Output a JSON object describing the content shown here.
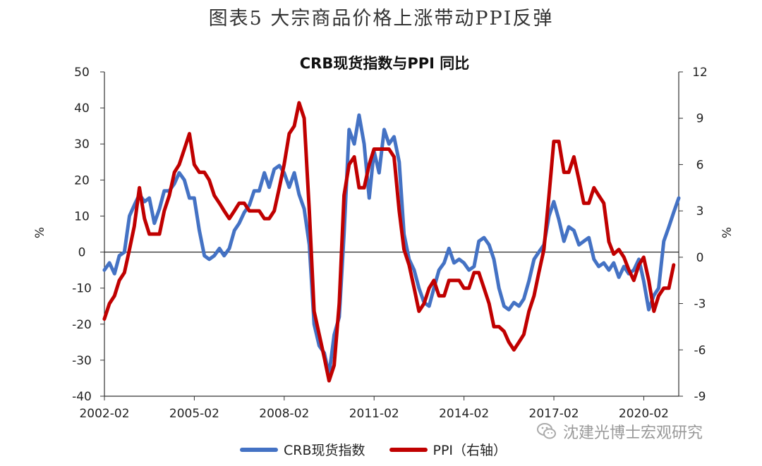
{
  "figure_title": "图表5  大宗商品价格上涨带动PPI反弹",
  "watermark": {
    "text": "沈建光博士宏观研究",
    "icon": "wechat-icon"
  },
  "chart_data": {
    "type": "line",
    "title": "CRB现货指数与PPI 同比",
    "ylabel": "%",
    "y2label": "%",
    "ylim": [
      -40,
      50
    ],
    "y2lim": [
      -9,
      12
    ],
    "yticks": [
      "50",
      "40",
      "30",
      "20",
      "10",
      "0",
      "-10",
      "-20",
      "-30",
      "-40"
    ],
    "y2ticks": [
      "12",
      "9",
      "6",
      "3",
      "0",
      "-3",
      "-6",
      "-9"
    ],
    "xlim": [
      2002.083,
      2021.25
    ],
    "xticks": [
      {
        "label": "2002-02",
        "x": 2002.083
      },
      {
        "label": "2005-02",
        "x": 2005.083
      },
      {
        "label": "2008-02",
        "x": 2008.083
      },
      {
        "label": "2011-02",
        "x": 2011.083
      },
      {
        "label": "2014-02",
        "x": 2014.083
      },
      {
        "label": "2017-02",
        "x": 2017.083
      },
      {
        "label": "2020-02",
        "x": 2020.083
      }
    ],
    "legend_position": "bottom",
    "grid": false,
    "series": [
      {
        "name": "CRB现货指数",
        "axis": "left",
        "color": "#4472C4",
        "points": [
          [
            2002.08,
            -5
          ],
          [
            2002.25,
            -3
          ],
          [
            2002.42,
            -6
          ],
          [
            2002.58,
            -1
          ],
          [
            2002.75,
            0
          ],
          [
            2002.92,
            10
          ],
          [
            2003.08,
            13
          ],
          [
            2003.25,
            16
          ],
          [
            2003.42,
            14
          ],
          [
            2003.58,
            15
          ],
          [
            2003.75,
            8
          ],
          [
            2003.92,
            12
          ],
          [
            2004.08,
            17
          ],
          [
            2004.25,
            17
          ],
          [
            2004.42,
            19
          ],
          [
            2004.58,
            22
          ],
          [
            2004.75,
            20
          ],
          [
            2004.92,
            15
          ],
          [
            2005.08,
            15
          ],
          [
            2005.25,
            6
          ],
          [
            2005.42,
            -1
          ],
          [
            2005.58,
            -2
          ],
          [
            2005.75,
            -1
          ],
          [
            2005.92,
            1
          ],
          [
            2006.08,
            -1
          ],
          [
            2006.25,
            1
          ],
          [
            2006.42,
            6
          ],
          [
            2006.58,
            8
          ],
          [
            2006.75,
            11
          ],
          [
            2006.92,
            13
          ],
          [
            2007.08,
            17
          ],
          [
            2007.25,
            17
          ],
          [
            2007.42,
            22
          ],
          [
            2007.58,
            18
          ],
          [
            2007.75,
            23
          ],
          [
            2007.92,
            24
          ],
          [
            2008.08,
            22
          ],
          [
            2008.25,
            18
          ],
          [
            2008.42,
            22
          ],
          [
            2008.58,
            16
          ],
          [
            2008.75,
            12
          ],
          [
            2008.92,
            2
          ],
          [
            2009.08,
            -20
          ],
          [
            2009.25,
            -26
          ],
          [
            2009.42,
            -28
          ],
          [
            2009.58,
            -34
          ],
          [
            2009.75,
            -23
          ],
          [
            2009.92,
            -18
          ],
          [
            2010.08,
            5
          ],
          [
            2010.25,
            34
          ],
          [
            2010.42,
            30
          ],
          [
            2010.58,
            38
          ],
          [
            2010.75,
            30
          ],
          [
            2010.92,
            15
          ],
          [
            2011.08,
            28
          ],
          [
            2011.25,
            22
          ],
          [
            2011.42,
            34
          ],
          [
            2011.58,
            30
          ],
          [
            2011.75,
            32
          ],
          [
            2011.92,
            25
          ],
          [
            2012.08,
            5
          ],
          [
            2012.25,
            -2
          ],
          [
            2012.42,
            -5
          ],
          [
            2012.58,
            -10
          ],
          [
            2012.75,
            -14
          ],
          [
            2012.92,
            -15
          ],
          [
            2013.08,
            -10
          ],
          [
            2013.25,
            -5
          ],
          [
            2013.42,
            -3
          ],
          [
            2013.58,
            1
          ],
          [
            2013.75,
            -3
          ],
          [
            2013.92,
            -2
          ],
          [
            2014.08,
            -3
          ],
          [
            2014.25,
            -5
          ],
          [
            2014.42,
            -4
          ],
          [
            2014.58,
            3
          ],
          [
            2014.75,
            4
          ],
          [
            2014.92,
            2
          ],
          [
            2015.08,
            -2
          ],
          [
            2015.25,
            -10
          ],
          [
            2015.42,
            -15
          ],
          [
            2015.58,
            -16
          ],
          [
            2015.75,
            -14
          ],
          [
            2015.92,
            -15
          ],
          [
            2016.08,
            -13
          ],
          [
            2016.25,
            -8
          ],
          [
            2016.42,
            -2
          ],
          [
            2016.58,
            0
          ],
          [
            2016.75,
            2
          ],
          [
            2016.92,
            10
          ],
          [
            2017.08,
            14
          ],
          [
            2017.25,
            9
          ],
          [
            2017.42,
            3
          ],
          [
            2017.58,
            7
          ],
          [
            2017.75,
            6
          ],
          [
            2017.92,
            2
          ],
          [
            2018.08,
            3
          ],
          [
            2018.25,
            4
          ],
          [
            2018.42,
            -2
          ],
          [
            2018.58,
            -4
          ],
          [
            2018.75,
            -3
          ],
          [
            2018.92,
            -5
          ],
          [
            2019.08,
            -3
          ],
          [
            2019.25,
            -7
          ],
          [
            2019.42,
            -4
          ],
          [
            2019.58,
            -6
          ],
          [
            2019.75,
            -5
          ],
          [
            2019.92,
            -2
          ],
          [
            2020.08,
            -8
          ],
          [
            2020.25,
            -16
          ],
          [
            2020.42,
            -12
          ],
          [
            2020.58,
            -10
          ],
          [
            2020.75,
            3
          ],
          [
            2020.92,
            7
          ],
          [
            2021.08,
            11
          ],
          [
            2021.25,
            15
          ]
        ]
      },
      {
        "name": "PPI（右轴）",
        "axis": "right",
        "color": "#C00000",
        "points": [
          [
            2002.08,
            -4
          ],
          [
            2002.25,
            -3
          ],
          [
            2002.42,
            -2.5
          ],
          [
            2002.58,
            -1.5
          ],
          [
            2002.75,
            -1
          ],
          [
            2002.92,
            0.5
          ],
          [
            2003.08,
            2
          ],
          [
            2003.25,
            4.5
          ],
          [
            2003.42,
            2.5
          ],
          [
            2003.58,
            1.5
          ],
          [
            2003.75,
            1.5
          ],
          [
            2003.92,
            1.5
          ],
          [
            2004.08,
            3
          ],
          [
            2004.25,
            4
          ],
          [
            2004.42,
            5.5
          ],
          [
            2004.58,
            6
          ],
          [
            2004.75,
            7
          ],
          [
            2004.92,
            8
          ],
          [
            2005.08,
            6
          ],
          [
            2005.25,
            5.5
          ],
          [
            2005.42,
            5.5
          ],
          [
            2005.58,
            5
          ],
          [
            2005.75,
            4
          ],
          [
            2005.92,
            3.5
          ],
          [
            2006.08,
            3
          ],
          [
            2006.25,
            2.5
          ],
          [
            2006.42,
            3
          ],
          [
            2006.58,
            3.5
          ],
          [
            2006.75,
            3.5
          ],
          [
            2006.92,
            3
          ],
          [
            2007.08,
            3
          ],
          [
            2007.25,
            3
          ],
          [
            2007.42,
            2.5
          ],
          [
            2007.58,
            2.5
          ],
          [
            2007.75,
            3
          ],
          [
            2007.92,
            4.5
          ],
          [
            2008.08,
            6
          ],
          [
            2008.25,
            8
          ],
          [
            2008.42,
            8.5
          ],
          [
            2008.58,
            10
          ],
          [
            2008.75,
            9
          ],
          [
            2008.92,
            3
          ],
          [
            2009.08,
            -3.5
          ],
          [
            2009.25,
            -5
          ],
          [
            2009.42,
            -6.5
          ],
          [
            2009.58,
            -8
          ],
          [
            2009.75,
            -7
          ],
          [
            2009.92,
            -3
          ],
          [
            2010.08,
            4
          ],
          [
            2010.25,
            6
          ],
          [
            2010.42,
            6.5
          ],
          [
            2010.58,
            4.5
          ],
          [
            2010.75,
            4.5
          ],
          [
            2010.92,
            6
          ],
          [
            2011.08,
            7
          ],
          [
            2011.25,
            7
          ],
          [
            2011.42,
            7
          ],
          [
            2011.58,
            7
          ],
          [
            2011.75,
            6.5
          ],
          [
            2011.92,
            3
          ],
          [
            2012.08,
            0.5
          ],
          [
            2012.25,
            -0.5
          ],
          [
            2012.42,
            -2
          ],
          [
            2012.58,
            -3.5
          ],
          [
            2012.75,
            -3
          ],
          [
            2012.92,
            -2
          ],
          [
            2013.08,
            -1.5
          ],
          [
            2013.25,
            -2.5
          ],
          [
            2013.42,
            -2.5
          ],
          [
            2013.58,
            -1.5
          ],
          [
            2013.75,
            -1.5
          ],
          [
            2013.92,
            -1.5
          ],
          [
            2014.08,
            -2
          ],
          [
            2014.25,
            -2
          ],
          [
            2014.42,
            -1
          ],
          [
            2014.58,
            -1
          ],
          [
            2014.75,
            -2
          ],
          [
            2014.92,
            -3
          ],
          [
            2015.08,
            -4.5
          ],
          [
            2015.25,
            -4.5
          ],
          [
            2015.42,
            -4.8
          ],
          [
            2015.58,
            -5.5
          ],
          [
            2015.75,
            -6
          ],
          [
            2015.92,
            -5.5
          ],
          [
            2016.08,
            -5
          ],
          [
            2016.25,
            -3.5
          ],
          [
            2016.42,
            -2.5
          ],
          [
            2016.58,
            -1
          ],
          [
            2016.75,
            0.5
          ],
          [
            2016.92,
            4
          ],
          [
            2017.08,
            7.5
          ],
          [
            2017.25,
            7.5
          ],
          [
            2017.42,
            5.5
          ],
          [
            2017.58,
            5.5
          ],
          [
            2017.75,
            6.5
          ],
          [
            2017.92,
            5
          ],
          [
            2018.08,
            3.5
          ],
          [
            2018.25,
            3.5
          ],
          [
            2018.42,
            4.5
          ],
          [
            2018.58,
            4
          ],
          [
            2018.75,
            3.5
          ],
          [
            2018.92,
            1
          ],
          [
            2019.08,
            0.2
          ],
          [
            2019.25,
            0.5
          ],
          [
            2019.42,
            0
          ],
          [
            2019.58,
            -0.8
          ],
          [
            2019.75,
            -1.5
          ],
          [
            2019.92,
            -0.5
          ],
          [
            2020.08,
            0
          ],
          [
            2020.25,
            -1.5
          ],
          [
            2020.42,
            -3.5
          ],
          [
            2020.58,
            -2.5
          ],
          [
            2020.75,
            -2
          ],
          [
            2020.92,
            -2
          ],
          [
            2021.08,
            -0.5
          ]
        ]
      }
    ]
  }
}
